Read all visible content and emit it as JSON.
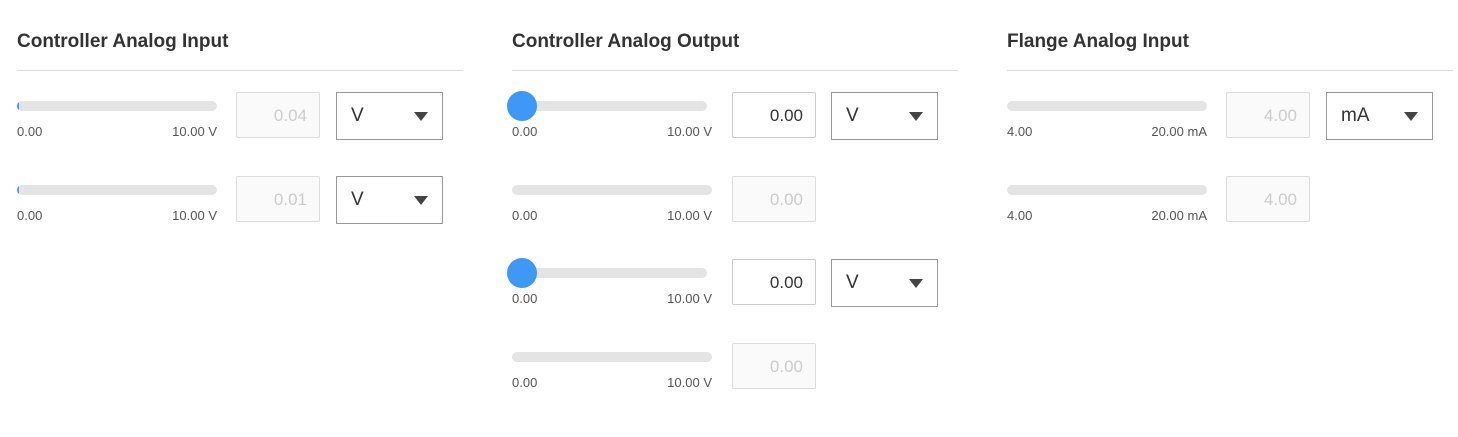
{
  "accent": "#3e98f5",
  "panels": [
    {
      "title": "Controller Analog Input",
      "rows": [
        {
          "min": "0.00",
          "max": "10.00 V",
          "value": "0.04",
          "fraction": 0.004,
          "editable": false,
          "slider": false,
          "unit": "V"
        },
        {
          "min": "0.00",
          "max": "10.00 V",
          "value": "0.01",
          "fraction": 0.001,
          "editable": false,
          "slider": false,
          "unit": "V"
        }
      ]
    },
    {
      "title": "Controller Analog Output",
      "rows": [
        {
          "min": "0.00",
          "max": "10.00 V",
          "value": "0.00",
          "fraction": 0,
          "editable": true,
          "slider": true,
          "unit": "V"
        },
        {
          "min": "0.00",
          "max": "10.00 V",
          "value": "0.00",
          "fraction": 0,
          "editable": false,
          "slider": false
        },
        {
          "min": "0.00",
          "max": "10.00 V",
          "value": "0.00",
          "fraction": 0,
          "editable": true,
          "slider": true,
          "unit": "V"
        },
        {
          "min": "0.00",
          "max": "10.00 V",
          "value": "0.00",
          "fraction": 0,
          "editable": false,
          "slider": false
        }
      ]
    },
    {
      "title": "Flange Analog Input",
      "rows": [
        {
          "min": "4.00",
          "max": "20.00 mA",
          "value": "4.00",
          "fraction": 0,
          "editable": false,
          "slider": false,
          "unit": "mA"
        },
        {
          "min": "4.00",
          "max": "20.00 mA",
          "value": "4.00",
          "fraction": 0,
          "editable": false,
          "slider": false
        }
      ]
    }
  ]
}
